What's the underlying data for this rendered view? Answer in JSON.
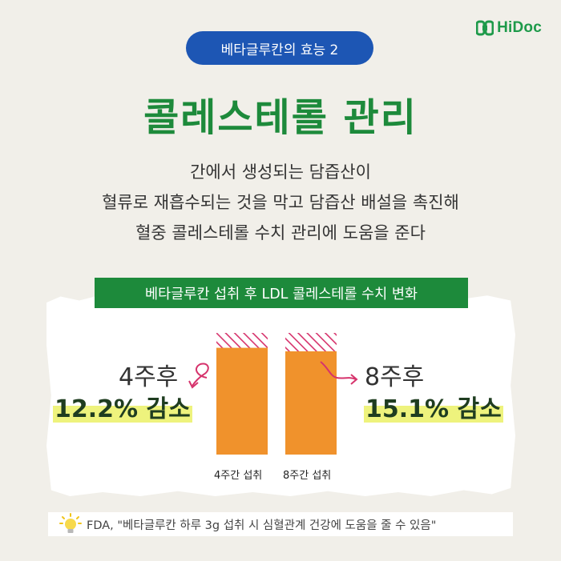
{
  "brand": {
    "name": "HiDoc",
    "color": "#1e9a4a"
  },
  "header": {
    "pill_label": "베타글루칸의 효능 2",
    "title": "콜레스테롤 관리"
  },
  "description": {
    "lines": [
      "간에서 생성되는 담즙산이",
      "혈류로 재흡수되는 것을 막고 담즙산 배설을 촉진해",
      "혈중 콜레스테롤 수치 관리에 도움을 준다"
    ]
  },
  "chart_data": {
    "type": "bar",
    "title": "베타글루칸 섭취 후 LDL 콜레스테롤 수치 변화",
    "categories": [
      "4주간 섭취",
      "8주간 섭취"
    ],
    "series": [
      {
        "values": [
          87.8,
          84.9
        ],
        "color": "#f0922c"
      },
      {
        "values": [
          12.2,
          15.1
        ],
        "color": "#d6336c",
        "pattern": "hatched"
      }
    ],
    "annotations": [
      {
        "period": "4주후",
        "value": "12.2% 감소"
      },
      {
        "period": "8주후",
        "value": "15.1% 감소"
      }
    ],
    "ylim": [
      0,
      100
    ]
  },
  "source": {
    "icon": "lightbulb-icon",
    "text": "FDA, \"베타글루칸 하루 3g 섭취 시 심혈관계 건강에 도움을 줄 수 있음\""
  },
  "colors": {
    "green": "#1d8a3b",
    "blue": "#1d56b4",
    "orange": "#f0922c",
    "pink": "#d6336c",
    "highlight": "#eef37d"
  }
}
